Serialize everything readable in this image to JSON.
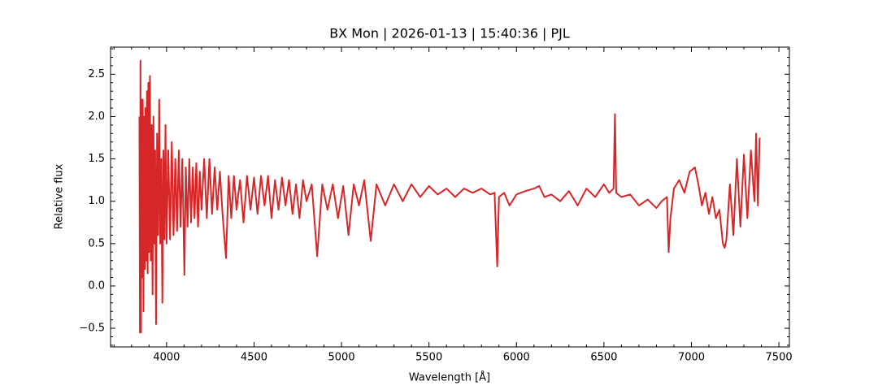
{
  "chart_data": {
    "type": "line",
    "title": "BX Mon | 2026-01-13 | 15:40:36 | PJL",
    "xlabel": "Wavelength [Å]",
    "ylabel": "Relative flux",
    "color": "#d62728",
    "xlim": [
      3680,
      7560
    ],
    "ylim": [
      -0.72,
      2.82
    ],
    "xticks": [
      4000,
      4500,
      5000,
      5500,
      6000,
      6500,
      7000,
      7500
    ],
    "yticks": [
      {
        "value": -0.5,
        "label": "−0.5"
      },
      {
        "value": 0,
        "label": "0.0"
      },
      0.5,
      {
        "value": 1,
        "label": "1.0"
      },
      1.5,
      {
        "value": 2,
        "label": "2.0"
      },
      2.5
    ],
    "xminorticks": [
      3700,
      3800,
      3900,
      4100,
      4200,
      4300,
      4400,
      4600,
      4700,
      4800,
      4900,
      5100,
      5200,
      5300,
      5400,
      5600,
      5700,
      5800,
      5900,
      6100,
      6200,
      6300,
      6400,
      6600,
      6700,
      6800,
      6900,
      7100,
      7200,
      7300,
      7400
    ],
    "yminorticks": [
      -0.7,
      -0.6,
      -0.4,
      -0.3,
      -0.2,
      -0.1,
      0.1,
      0.2,
      0.3,
      0.4,
      0.6,
      0.7,
      0.8,
      0.9,
      1.1,
      1.2,
      1.3,
      1.4,
      1.6,
      1.7,
      1.8,
      1.9,
      2.1,
      2.2,
      2.3,
      2.4,
      2.6,
      2.7,
      2.8
    ],
    "x": [
      3845,
      3848,
      3851,
      3854,
      3857,
      3860,
      3864,
      3868,
      3872,
      3876,
      3880,
      3884,
      3888,
      3892,
      3896,
      3900,
      3905,
      3910,
      3915,
      3920,
      3925,
      3930,
      3935,
      3940,
      3946,
      3952,
      3958,
      3964,
      3970,
      3976,
      3982,
      3988,
      3994,
      4000,
      4010,
      4020,
      4030,
      4040,
      4050,
      4060,
      4070,
      4080,
      4090,
      4102,
      4110,
      4120,
      4130,
      4140,
      4150,
      4160,
      4170,
      4180,
      4190,
      4200,
      4215,
      4230,
      4245,
      4260,
      4275,
      4290,
      4305,
      4320,
      4340,
      4355,
      4370,
      4385,
      4400,
      4420,
      4440,
      4460,
      4480,
      4500,
      4520,
      4540,
      4560,
      4580,
      4600,
      4620,
      4640,
      4660,
      4680,
      4700,
      4720,
      4740,
      4760,
      4780,
      4800,
      4830,
      4861,
      4890,
      4920,
      4950,
      4980,
      5010,
      5040,
      5070,
      5100,
      5130,
      5167,
      5200,
      5250,
      5300,
      5350,
      5400,
      5450,
      5500,
      5550,
      5600,
      5650,
      5700,
      5750,
      5800,
      5850,
      5875,
      5890,
      5900,
      5930,
      5960,
      6000,
      6050,
      6100,
      6130,
      6160,
      6200,
      6250,
      6300,
      6350,
      6400,
      6450,
      6500,
      6530,
      6555,
      6563,
      6570,
      6600,
      6650,
      6700,
      6750,
      6800,
      6830,
      6860,
      6870,
      6880,
      6900,
      6930,
      6960,
      6990,
      7020,
      7040,
      7060,
      7080,
      7100,
      7120,
      7140,
      7160,
      7180,
      7190,
      7200,
      7220,
      7240,
      7260,
      7280,
      7300,
      7320,
      7340,
      7360,
      7370,
      7380,
      7390
    ],
    "values": [
      2.0,
      -0.55,
      2.66,
      -0.55,
      2.2,
      0.1,
      2.2,
      -0.3,
      2.0,
      0.2,
      2.1,
      0.3,
      2.3,
      0.15,
      2.4,
      0.4,
      2.48,
      0.3,
      1.9,
      -0.1,
      2.0,
      0.5,
      1.6,
      -0.45,
      1.8,
      0.6,
      2.2,
      0.5,
      1.5,
      -0.2,
      1.6,
      0.55,
      1.9,
      0.5,
      1.6,
      0.55,
      1.7,
      0.6,
      1.5,
      0.65,
      1.6,
      0.7,
      1.5,
      0.13,
      1.4,
      0.7,
      1.5,
      0.75,
      1.4,
      0.8,
      1.45,
      0.7,
      1.35,
      0.9,
      1.5,
      0.8,
      1.5,
      0.85,
      1.4,
      0.9,
      1.35,
      0.85,
      0.33,
      1.3,
      0.8,
      1.3,
      0.9,
      1.25,
      0.75,
      1.3,
      0.9,
      1.28,
      0.85,
      1.3,
      0.95,
      1.3,
      0.8,
      1.25,
      0.9,
      1.28,
      0.95,
      1.25,
      0.85,
      1.2,
      0.8,
      1.25,
      1.0,
      1.2,
      0.35,
      1.2,
      0.9,
      1.2,
      0.8,
      1.18,
      0.6,
      1.2,
      0.95,
      1.25,
      0.53,
      1.2,
      0.95,
      1.2,
      1.0,
      1.2,
      1.05,
      1.18,
      1.08,
      1.15,
      1.05,
      1.15,
      1.1,
      1.15,
      1.08,
      1.1,
      0.23,
      1.05,
      1.1,
      0.95,
      1.08,
      1.12,
      1.15,
      1.18,
      1.05,
      1.08,
      1.0,
      1.12,
      0.95,
      1.15,
      1.05,
      1.2,
      1.1,
      1.15,
      2.03,
      1.1,
      1.05,
      1.08,
      0.95,
      1.02,
      0.92,
      1.0,
      1.05,
      0.4,
      0.8,
      1.15,
      1.25,
      1.1,
      1.35,
      1.4,
      1.2,
      0.95,
      1.1,
      0.85,
      1.05,
      0.8,
      0.9,
      0.5,
      0.45,
      0.55,
      1.2,
      0.6,
      1.5,
      0.7,
      1.55,
      0.8,
      1.6,
      1.0,
      1.8,
      0.95,
      1.75
    ]
  }
}
